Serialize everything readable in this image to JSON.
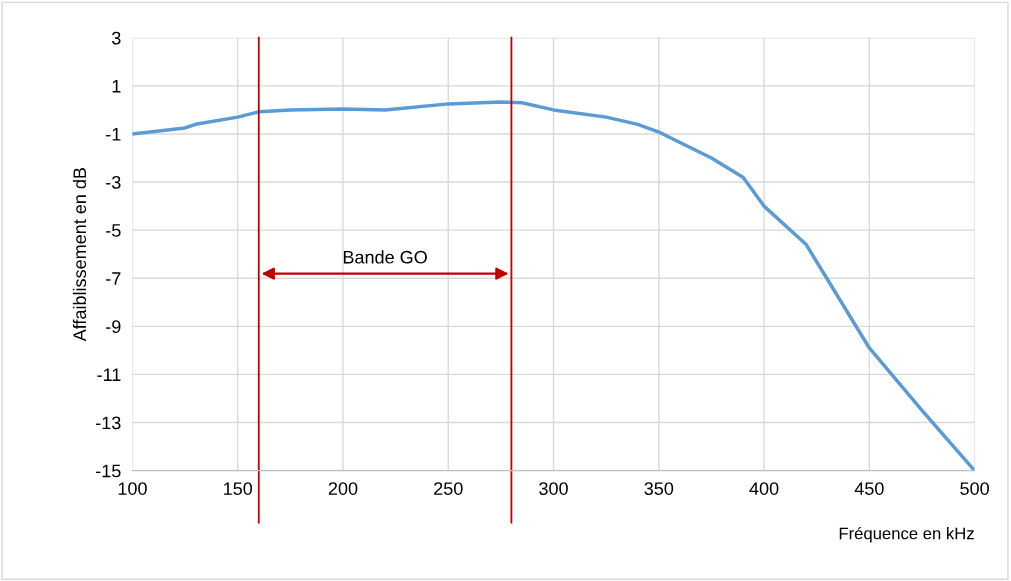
{
  "chart_data": {
    "type": "line",
    "xlabel": "Fréquence en kHz",
    "ylabel": "Affaiblissement en dB",
    "x": [
      100,
      125,
      130,
      150,
      160,
      175,
      200,
      220,
      250,
      275,
      285,
      300,
      325,
      340,
      350,
      375,
      390,
      400,
      420,
      450,
      475,
      500
    ],
    "series": [
      {
        "color": "#5b9bd5",
        "values": [
          -1.0,
          -0.75,
          -0.6,
          -0.3,
          -0.08,
          0.0,
          0.04,
          0.0,
          0.25,
          0.33,
          0.3,
          0.0,
          -0.3,
          -0.6,
          -0.92,
          -2.0,
          -2.8,
          -4.0,
          -5.6,
          -9.9,
          -12.5,
          -15.0
        ]
      }
    ],
    "xlim": [
      100,
      500
    ],
    "xticks": [
      100,
      150,
      200,
      250,
      300,
      350,
      400,
      450,
      500
    ],
    "ylim": [
      -15,
      3
    ],
    "yticks": [
      -15,
      -13,
      -11,
      -9,
      -7,
      -5,
      -3,
      -1,
      1,
      3
    ],
    "grid": true,
    "ref_lines": [
      {
        "axis": "x",
        "value": 160,
        "color": "#c00000"
      },
      {
        "axis": "x",
        "value": 280,
        "color": "#c00000"
      }
    ],
    "annotations": [
      "Bande GO"
    ]
  }
}
